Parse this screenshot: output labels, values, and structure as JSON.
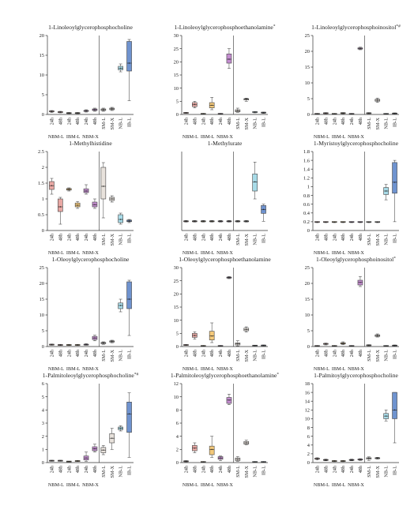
{
  "categories": [
    "24h",
    "48h",
    "24h",
    "48h",
    "24h",
    "48h",
    "SM-L",
    "SM-X",
    "NB-L",
    "IB-L"
  ],
  "groups": [
    "NBM-L",
    "IBM-L",
    "NBM-X"
  ],
  "colors": [
    "#e9a8a4",
    "#e9a8a4",
    "#f4c97b",
    "#f4c97b",
    "#c48dd0",
    "#c48dd0",
    "#e8e2dc",
    "#e8e2dc",
    "#a8dbe8",
    "#6f93cf"
  ],
  "chart_data": [
    {
      "type": "box",
      "title": "1-Linoleoylglycerophosphocholine",
      "ylim": [
        0,
        20
      ],
      "ticks": [
        0,
        5,
        10,
        15,
        20
      ],
      "boxes": [
        [
          0.5,
          0.7,
          0.8,
          0.9,
          1.0,
          1
        ],
        [
          0.4,
          0.5,
          0.6,
          0.7,
          0.8,
          1
        ],
        [
          0.2,
          0.3,
          0.35,
          0.4,
          0.5,
          2
        ],
        [
          0.2,
          0.3,
          0.35,
          0.4,
          0.5,
          2
        ],
        [
          0.6,
          0.8,
          0.9,
          1.0,
          1.2,
          4
        ],
        [
          0.8,
          1.0,
          1.2,
          1.4,
          1.6,
          4
        ],
        [
          0.8,
          1.0,
          1.2,
          1.4,
          1.6,
          6
        ],
        [
          1.0,
          1.2,
          1.4,
          1.6,
          1.8,
          6
        ],
        [
          10.8,
          11.3,
          11.7,
          12.2,
          12.8,
          8
        ],
        [
          3.5,
          11.0,
          13.0,
          18.5,
          19.0,
          9
        ]
      ]
    },
    {
      "type": "box",
      "title": "1-Linoleoylglycerophosphoethanolamine",
      "superscript": "*",
      "ylim": [
        0,
        30
      ],
      "ticks": [
        0,
        5,
        10,
        15,
        20,
        25,
        30
      ],
      "boxes": [
        [
          0.4,
          0.5,
          0.6,
          0.7,
          0.8,
          1
        ],
        [
          2.5,
          3.0,
          3.8,
          4.5,
          5.0,
          1
        ],
        [
          0.1,
          0.2,
          0.25,
          0.3,
          0.4,
          2
        ],
        [
          1.8,
          2.5,
          3.5,
          4.5,
          6.5,
          3
        ],
        [
          0.1,
          0.2,
          0.25,
          0.3,
          0.4,
          4
        ],
        [
          17.5,
          19.5,
          21.0,
          23.0,
          25.0,
          5
        ],
        [
          0.8,
          1.0,
          1.4,
          1.8,
          2.4,
          6
        ],
        [
          5.0,
          5.5,
          5.8,
          6.0,
          6.2,
          6
        ],
        [
          0.6,
          0.8,
          0.9,
          1.0,
          1.1,
          6
        ],
        [
          0.4,
          0.6,
          0.7,
          0.8,
          0.9,
          6
        ]
      ]
    },
    {
      "type": "box",
      "title": "1-Linoleoylglycerophosphoinositol",
      "superscript": "*#",
      "ylim": [
        0,
        25
      ],
      "ticks": [
        0,
        5,
        10,
        15,
        20,
        25
      ],
      "boxes": [
        [
          0.1,
          0.15,
          0.2,
          0.25,
          0.3,
          1
        ],
        [
          0.2,
          0.3,
          0.4,
          0.5,
          0.6,
          1
        ],
        [
          0.1,
          0.15,
          0.2,
          0.25,
          0.3,
          2
        ],
        [
          0.2,
          0.35,
          0.4,
          0.5,
          0.6,
          3
        ],
        [
          0.1,
          0.15,
          0.2,
          0.25,
          0.3,
          4
        ],
        [
          20.5,
          20.7,
          20.9,
          21.1,
          21.3,
          5
        ],
        [
          0.2,
          0.3,
          0.4,
          0.5,
          0.6,
          6
        ],
        [
          3.8,
          4.2,
          4.5,
          4.8,
          5.2,
          6
        ],
        [
          0.1,
          0.15,
          0.2,
          0.25,
          0.3,
          6
        ],
        [
          0.1,
          0.2,
          0.3,
          0.4,
          0.5,
          6
        ]
      ]
    },
    {
      "type": "box",
      "title": "1-Methylhistidine",
      "ylim": [
        0,
        2.5
      ],
      "ticks": [
        0,
        0.5,
        1,
        1.5,
        2,
        2.5
      ],
      "boxes": [
        [
          1.15,
          1.3,
          1.42,
          1.55,
          1.65,
          0
        ],
        [
          0.2,
          0.6,
          0.75,
          1.0,
          1.05,
          0
        ],
        [
          1.25,
          1.28,
          1.3,
          1.33,
          1.35,
          2
        ],
        [
          0.7,
          0.75,
          0.8,
          0.87,
          0.92,
          2
        ],
        [
          1.15,
          1.2,
          1.25,
          1.32,
          1.45,
          4
        ],
        [
          0.7,
          0.75,
          0.82,
          0.9,
          1.0,
          4
        ],
        [
          0.4,
          1.0,
          1.4,
          2.0,
          2.15,
          6
        ],
        [
          0.9,
          0.95,
          1.0,
          1.05,
          1.1,
          6
        ],
        [
          0.2,
          0.25,
          0.35,
          0.5,
          0.55,
          8
        ],
        [
          0.25,
          0.28,
          0.3,
          0.33,
          0.35,
          8
        ]
      ]
    },
    {
      "type": "box",
      "title": "1-Methylurate",
      "ylim": [
        0,
        3
      ],
      "ticks": [],
      "boxes": [
        [
          0.32,
          0.34,
          0.35,
          0.36,
          0.38,
          1
        ],
        [
          0.32,
          0.34,
          0.35,
          0.36,
          0.38,
          1
        ],
        [
          0.32,
          0.34,
          0.35,
          0.36,
          0.38,
          2
        ],
        [
          0.32,
          0.34,
          0.35,
          0.36,
          0.38,
          2
        ],
        [
          0.32,
          0.34,
          0.35,
          0.36,
          0.38,
          4
        ],
        [
          0.32,
          0.34,
          0.35,
          0.36,
          0.38,
          4
        ],
        [
          0.32,
          0.34,
          0.35,
          0.36,
          0.38,
          6
        ],
        [
          0.32,
          0.34,
          0.35,
          0.36,
          0.38,
          6
        ],
        [
          1.2,
          1.5,
          1.85,
          2.15,
          2.6,
          8
        ],
        [
          0.35,
          0.65,
          0.8,
          0.95,
          1.0,
          9
        ]
      ]
    },
    {
      "type": "box",
      "title": "1-Myristoylglycerophosphocholine",
      "ylim": [
        0,
        1.8
      ],
      "ticks": [
        0,
        0.2,
        0.4,
        0.6,
        0.8,
        1,
        1.2,
        1.4,
        1.6,
        1.8
      ],
      "boxes": [
        [
          0.18,
          0.19,
          0.19,
          0.2,
          0.2,
          7
        ],
        [
          0.18,
          0.19,
          0.19,
          0.2,
          0.2,
          7
        ],
        [
          0.18,
          0.19,
          0.19,
          0.2,
          0.2,
          7
        ],
        [
          0.18,
          0.19,
          0.19,
          0.2,
          0.2,
          7
        ],
        [
          0.18,
          0.19,
          0.19,
          0.2,
          0.2,
          7
        ],
        [
          0.18,
          0.19,
          0.19,
          0.2,
          0.2,
          7
        ],
        [
          0.18,
          0.19,
          0.19,
          0.2,
          0.2,
          7
        ],
        [
          0.18,
          0.19,
          0.19,
          0.2,
          0.2,
          7
        ],
        [
          0.7,
          0.82,
          0.9,
          0.98,
          1.05,
          8
        ],
        [
          0.2,
          0.85,
          1.1,
          1.55,
          1.6,
          9
        ]
      ]
    },
    {
      "type": "box",
      "title": "1-Oleoylglycerophosphocholine",
      "ylim": [
        0,
        25
      ],
      "ticks": [
        0,
        5,
        10,
        15,
        20,
        25
      ],
      "boxes": [
        [
          0.4,
          0.5,
          0.6,
          0.7,
          0.8,
          1
        ],
        [
          0.3,
          0.4,
          0.5,
          0.6,
          0.7,
          1
        ],
        [
          0.3,
          0.4,
          0.5,
          0.6,
          0.7,
          2
        ],
        [
          0.3,
          0.4,
          0.5,
          0.6,
          0.7,
          2
        ],
        [
          0.4,
          0.5,
          0.6,
          0.7,
          0.9,
          4
        ],
        [
          1.8,
          2.2,
          2.7,
          3.2,
          3.6,
          5
        ],
        [
          0.7,
          0.9,
          1.1,
          1.3,
          1.5,
          6
        ],
        [
          1.2,
          1.4,
          1.6,
          1.8,
          2.0,
          6
        ],
        [
          11.0,
          12.0,
          13.0,
          13.8,
          15.0,
          8
        ],
        [
          3.5,
          12.0,
          15.0,
          20.5,
          21.0,
          9
        ]
      ]
    },
    {
      "type": "box",
      "title": "1-Oleoylglycerophosphoethanolamine",
      "ylim": [
        0,
        30
      ],
      "ticks": [
        0,
        5,
        10,
        15,
        20,
        25,
        30
      ],
      "boxes": [
        [
          0.4,
          0.5,
          0.6,
          0.7,
          0.8,
          1
        ],
        [
          2.8,
          3.5,
          4.2,
          5.0,
          5.6,
          1
        ],
        [
          0.1,
          0.2,
          0.25,
          0.3,
          0.4,
          2
        ],
        [
          1.5,
          2.5,
          4.0,
          5.8,
          9.0,
          3
        ],
        [
          0.1,
          0.2,
          0.25,
          0.3,
          0.4,
          4
        ],
        [
          25.8,
          26.0,
          26.2,
          26.4,
          26.6,
          5
        ],
        [
          0.2,
          0.6,
          1.0,
          1.4,
          2.2,
          6
        ],
        [
          5.5,
          6.0,
          6.5,
          7.0,
          7.5,
          6
        ],
        [
          0.2,
          0.3,
          0.35,
          0.4,
          0.5,
          6
        ],
        [
          0.2,
          0.3,
          0.4,
          0.5,
          0.6,
          6
        ]
      ]
    },
    {
      "type": "box",
      "title": "1-Oleoylglycerophosphoinositol",
      "superscript": "*",
      "ylim": [
        0,
        25
      ],
      "ticks": [
        0,
        5,
        10,
        15,
        20,
        25
      ],
      "boxes": [
        [
          0.1,
          0.15,
          0.2,
          0.25,
          0.3,
          1
        ],
        [
          0.5,
          0.7,
          0.9,
          1.0,
          1.1,
          1
        ],
        [
          0.1,
          0.15,
          0.2,
          0.25,
          0.3,
          2
        ],
        [
          0.6,
          0.8,
          1.0,
          1.2,
          1.5,
          3
        ],
        [
          0.1,
          0.15,
          0.2,
          0.25,
          0.3,
          4
        ],
        [
          19.0,
          19.5,
          20.3,
          21.0,
          22.2,
          5
        ],
        [
          0.2,
          0.3,
          0.4,
          0.5,
          0.6,
          6
        ],
        [
          3.0,
          3.2,
          3.5,
          3.7,
          4.0,
          6
        ],
        [
          0.1,
          0.15,
          0.2,
          0.25,
          0.3,
          6
        ],
        [
          0.1,
          0.2,
          0.3,
          0.4,
          0.5,
          6
        ]
      ]
    },
    {
      "type": "box",
      "title": "1-Palmitoleoylglycerophosphocholine",
      "superscript": "*#",
      "ylim": [
        0,
        6
      ],
      "ticks": [
        0,
        1,
        2,
        3,
        4,
        5,
        6
      ],
      "boxes": [
        [
          0.1,
          0.12,
          0.14,
          0.16,
          0.18,
          1
        ],
        [
          0.1,
          0.12,
          0.14,
          0.16,
          0.18,
          1
        ],
        [
          0.05,
          0.07,
          0.08,
          0.09,
          0.1,
          2
        ],
        [
          0.08,
          0.1,
          0.12,
          0.14,
          0.16,
          2
        ],
        [
          0.1,
          0.2,
          0.35,
          0.5,
          0.8,
          4
        ],
        [
          0.8,
          0.9,
          1.05,
          1.2,
          1.4,
          4
        ],
        [
          0.6,
          0.75,
          0.95,
          1.15,
          1.3,
          6
        ],
        [
          1.0,
          1.5,
          1.85,
          2.2,
          2.6,
          6
        ],
        [
          2.4,
          2.5,
          2.6,
          2.7,
          2.8,
          8
        ],
        [
          0.4,
          2.3,
          3.7,
          4.6,
          5.3,
          9
        ]
      ]
    },
    {
      "type": "box",
      "title": "1-Palmitoleoylglycerophosphoethanolamine",
      "superscript": "*",
      "ylim": [
        0,
        12
      ],
      "ticks": [
        0,
        2,
        4,
        6,
        8,
        10,
        12
      ],
      "boxes": [
        [
          0.1,
          0.15,
          0.2,
          0.25,
          0.3,
          1
        ],
        [
          1.5,
          1.8,
          2.2,
          2.6,
          3.0,
          1
        ],
        [
          0.05,
          0.08,
          0.1,
          0.12,
          0.15,
          2
        ],
        [
          0.8,
          1.2,
          2.0,
          2.5,
          4.0,
          3
        ],
        [
          0.3,
          0.5,
          0.7,
          0.9,
          1.0,
          4
        ],
        [
          8.8,
          9.0,
          9.5,
          9.9,
          10.4,
          5
        ],
        [
          0.2,
          0.3,
          0.5,
          0.7,
          0.9,
          6
        ],
        [
          2.7,
          2.8,
          3.0,
          3.2,
          3.4,
          6
        ],
        [
          0.05,
          0.08,
          0.1,
          0.12,
          0.15,
          6
        ],
        [
          0.05,
          0.08,
          0.1,
          0.12,
          0.15,
          6
        ]
      ]
    },
    {
      "type": "box",
      "title": "1-Palmitoylglycerophosphocholine",
      "ylim": [
        0,
        18
      ],
      "ticks": [
        0,
        2,
        4,
        6,
        8,
        10,
        12,
        14,
        16,
        18
      ],
      "boxes": [
        [
          0.6,
          0.8,
          0.9,
          1.0,
          1.1,
          1
        ],
        [
          0.4,
          0.5,
          0.6,
          0.7,
          0.8,
          1
        ],
        [
          0.2,
          0.3,
          0.35,
          0.4,
          0.5,
          2
        ],
        [
          0.2,
          0.3,
          0.35,
          0.4,
          0.5,
          2
        ],
        [
          0.4,
          0.5,
          0.6,
          0.7,
          0.8,
          4
        ],
        [
          0.5,
          0.6,
          0.7,
          0.8,
          0.9,
          4
        ],
        [
          0.5,
          0.8,
          1.0,
          1.1,
          1.3,
          6
        ],
        [
          0.8,
          0.9,
          1.0,
          1.1,
          1.2,
          6
        ],
        [
          9.5,
          10.0,
          10.6,
          11.2,
          12.0,
          8
        ],
        [
          4.5,
          10.0,
          12.0,
          16.0,
          16.0,
          9
        ]
      ]
    }
  ]
}
